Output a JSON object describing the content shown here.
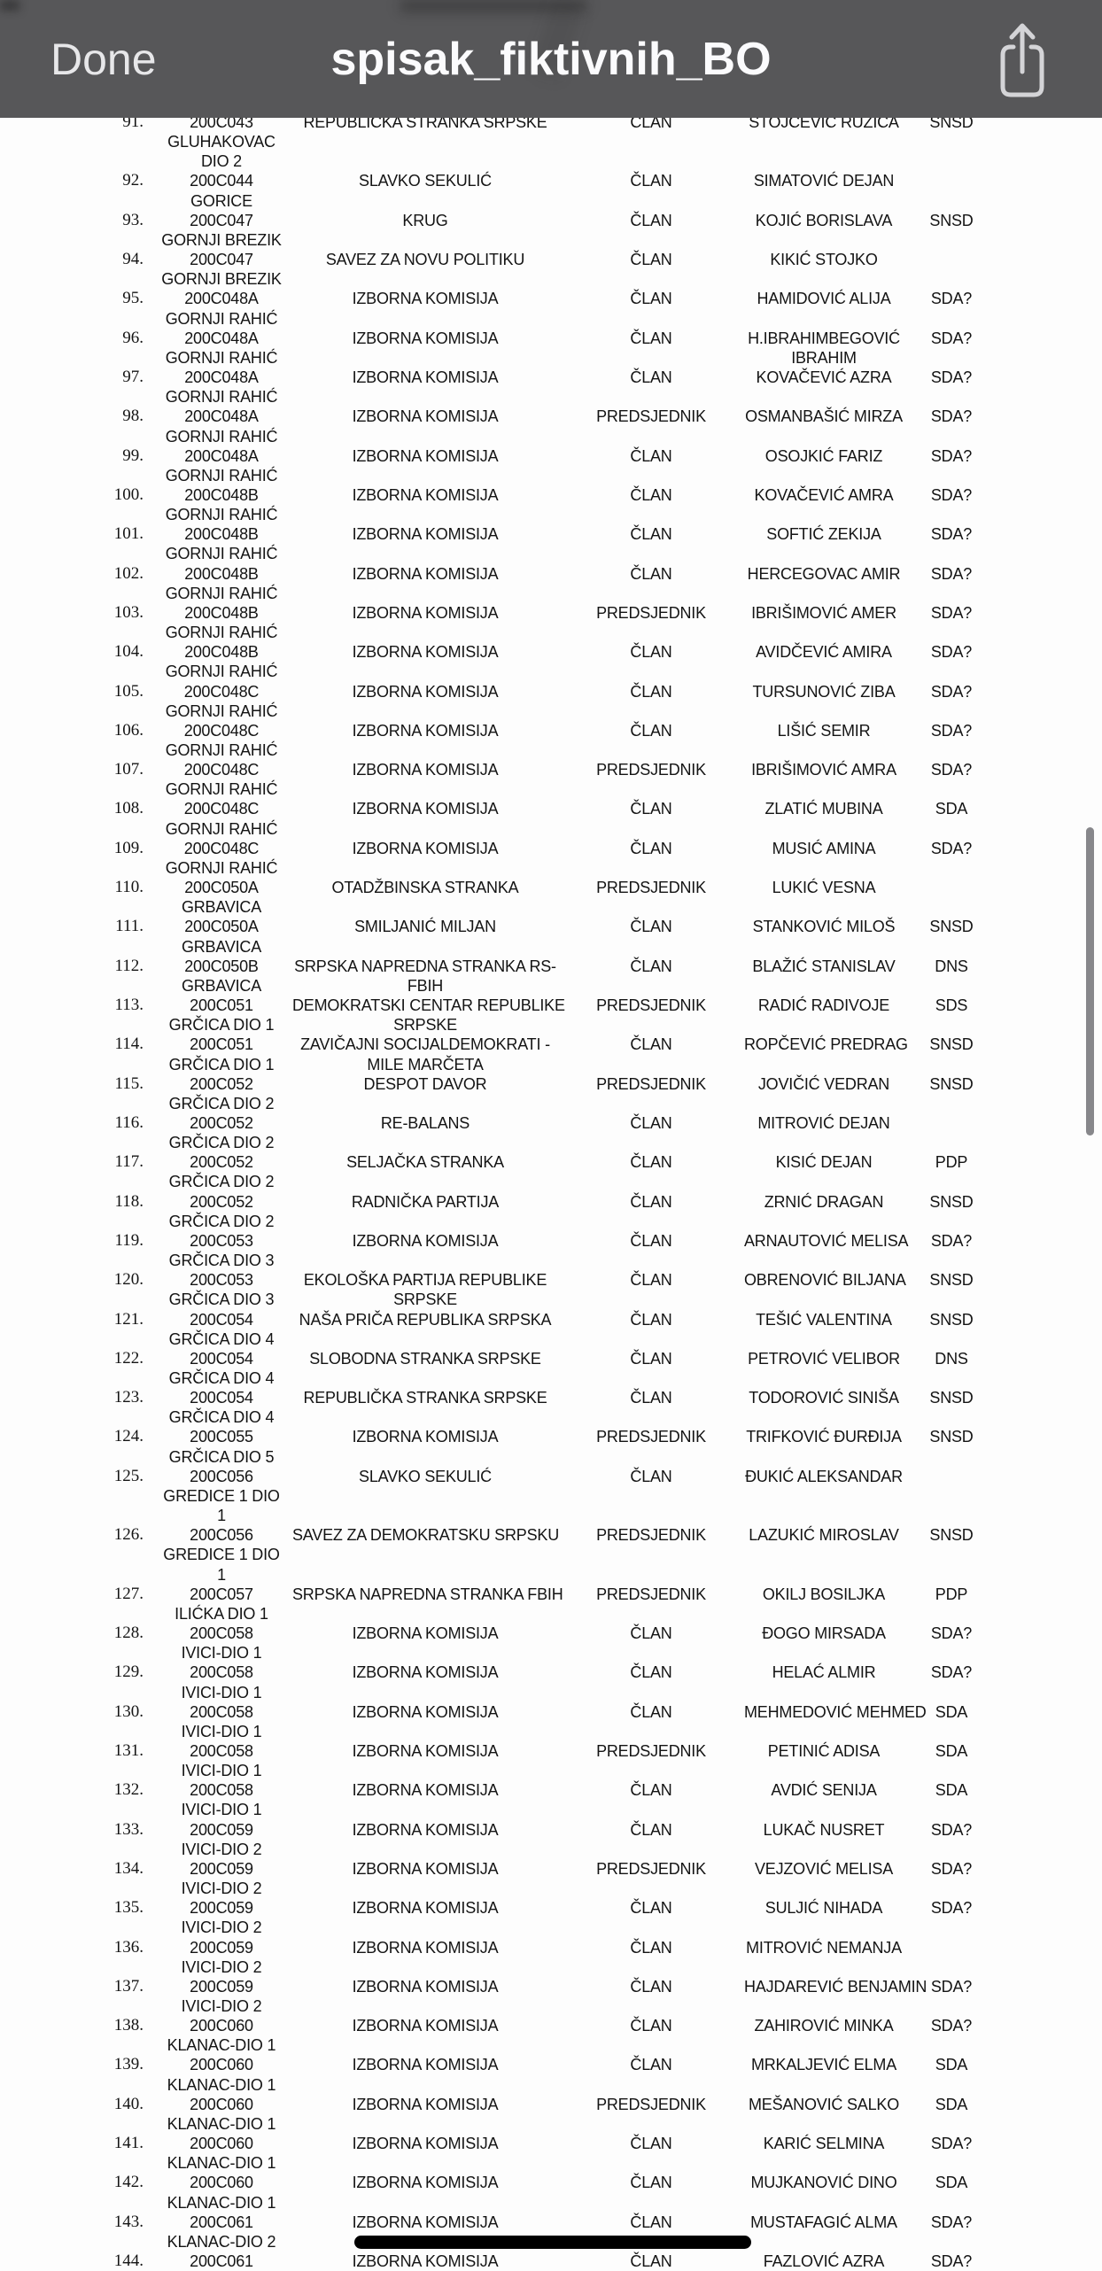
{
  "navbar": {
    "done_label": "Done",
    "title": "spisak_fiktivnih_BO"
  },
  "colors": {
    "navbar_bg": "#575759",
    "navbar_text": "#e7e7e9",
    "title_text": "#fbfbfd",
    "icon_color": "#d4d4d7",
    "page_bg": "#fdfdfd",
    "text_color": "#141414",
    "scrollbar_color": "#87878b",
    "redaction_color": "#000000"
  },
  "table": {
    "rows": [
      {
        "num": "91.",
        "code": "200C043",
        "place": "GLUHAKOVAC\nDIO 2",
        "party": "REPUBLIČKA STRANKA SRPSKE",
        "role": "ČLAN",
        "name": "STOJČEVIĆ RUŽICA",
        "abbr": "SNSD"
      },
      {
        "num": "92.",
        "code": "200C044",
        "place": "GORICE",
        "party": "SLAVKO SEKULIĆ",
        "role": "ČLAN",
        "name": "SIMATOVIĆ DEJAN",
        "abbr": ""
      },
      {
        "num": "93.",
        "code": "200C047",
        "place": "GORNJI BREZIK",
        "party": "KRUG",
        "role": "ČLAN",
        "name": "KOJIĆ BORISLAVA",
        "abbr": "SNSD"
      },
      {
        "num": "94.",
        "code": "200C047",
        "place": "GORNJI BREZIK",
        "party": "SAVEZ ZA NOVU POLITIKU",
        "role": "ČLAN",
        "name": "KIKIĆ STOJKO",
        "abbr": ""
      },
      {
        "num": "95.",
        "code": "200C048A",
        "place": "GORNJI RAHIĆ",
        "party": "IZBORNA KOMISIJA",
        "role": "ČLAN",
        "name": "HAMIDOVIĆ ALIJA",
        "abbr": "SDA?"
      },
      {
        "num": "96.",
        "code": "200C048A",
        "place": "GORNJI RAHIĆ",
        "party": "IZBORNA KOMISIJA",
        "role": "ČLAN",
        "name": "H.IBRAHIMBEGOVIĆ\nIBRAHIM",
        "abbr": "SDA?"
      },
      {
        "num": "97.",
        "code": "200C048A",
        "place": "GORNJI RAHIĆ",
        "party": "IZBORNA KOMISIJA",
        "role": "ČLAN",
        "name": "KOVAČEVIĆ AZRA",
        "abbr": "SDA?"
      },
      {
        "num": "98.",
        "code": "200C048A",
        "place": "GORNJI RAHIĆ",
        "party": "IZBORNA KOMISIJA",
        "role": "PREDSJEDNIK",
        "name": "OSMANBAŠIĆ MIRZA",
        "abbr": "SDA?"
      },
      {
        "num": "99.",
        "code": "200C048A",
        "place": "GORNJI RAHIĆ",
        "party": "IZBORNA KOMISIJA",
        "role": "ČLAN",
        "name": "OSOJKIĆ FARIZ",
        "abbr": "SDA?"
      },
      {
        "num": "100.",
        "code": "200C048B",
        "place": "GORNJI RAHIĆ",
        "party": "IZBORNA KOMISIJA",
        "role": "ČLAN",
        "name": "KOVAČEVIĆ AMRA",
        "abbr": "SDA?"
      },
      {
        "num": "101.",
        "code": "200C048B",
        "place": "GORNJI RAHIĆ",
        "party": "IZBORNA KOMISIJA",
        "role": "ČLAN",
        "name": "SOFTIĆ ZEKIJA",
        "abbr": "SDA?"
      },
      {
        "num": "102.",
        "code": "200C048B",
        "place": "GORNJI RAHIĆ",
        "party": "IZBORNA KOMISIJA",
        "role": "ČLAN",
        "name": "HERCEGOVAC AMIR",
        "abbr": "SDA?"
      },
      {
        "num": "103.",
        "code": "200C048B",
        "place": "GORNJI RAHIĆ",
        "party": "IZBORNA KOMISIJA",
        "role": "PREDSJEDNIK",
        "name": "IBRIŠIMOVIĆ AMER",
        "abbr": "SDA?"
      },
      {
        "num": "104.",
        "code": "200C048B",
        "place": "GORNJI RAHIĆ",
        "party": "IZBORNA KOMISIJA",
        "role": "ČLAN",
        "name": "AVIDČEVIĆ AMIRA",
        "abbr": "SDA?"
      },
      {
        "num": "105.",
        "code": "200C048C",
        "place": "GORNJI RAHIĆ",
        "party": "IZBORNA KOMISIJA",
        "role": "ČLAN",
        "name": "TURSUNOVIĆ ZIBA",
        "abbr": "SDA?"
      },
      {
        "num": "106.",
        "code": "200C048C",
        "place": "GORNJI RAHIĆ",
        "party": "IZBORNA KOMISIJA",
        "role": "ČLAN",
        "name": "LIŠIĆ SEMIR",
        "abbr": "SDA?"
      },
      {
        "num": "107.",
        "code": "200C048C",
        "place": "GORNJI RAHIĆ",
        "party": "IZBORNA KOMISIJA",
        "role": "PREDSJEDNIK",
        "name": "IBRIŠIMOVIĆ AMRA",
        "abbr": "SDA?"
      },
      {
        "num": "108.",
        "code": "200C048C",
        "place": "GORNJI RAHIĆ",
        "party": "IZBORNA KOMISIJA",
        "role": "ČLAN",
        "name": "ZLATIĆ MUBINA",
        "abbr": "SDA"
      },
      {
        "num": "109.",
        "code": "200C048C",
        "place": "GORNJI RAHIĆ",
        "party": "IZBORNA KOMISIJA",
        "role": "ČLAN",
        "name": "MUSIĆ AMINA",
        "abbr": "SDA?"
      },
      {
        "num": "110.",
        "code": "200C050A",
        "place": "GRBAVICA",
        "party": "OTADŽBINSKA STRANKA",
        "role": "PREDSJEDNIK",
        "name": "LUKIĆ VESNA",
        "abbr": ""
      },
      {
        "num": "111.",
        "code": "200C050A",
        "place": "GRBAVICA",
        "party": "SMILJANIĆ MILJAN",
        "role": "ČLAN",
        "name": "STANKOVIĆ MILOŠ",
        "abbr": "SNSD"
      },
      {
        "num": "112.",
        "code": "200C050B",
        "place": "GRBAVICA",
        "party": "SRPSKA NAPREDNA STRANKA RS-\nFBIH",
        "role": "ČLAN",
        "name": "BLAŽIĆ STANISLAV",
        "abbr": "DNS"
      },
      {
        "num": "113.",
        "code": "200C051",
        "place": "GRČICA DIO 1",
        "party": "DEMOKRATSKI CENTAR REPUBLIKE\nSRPSKE",
        "role": "PREDSJEDNIK",
        "name": "RADIĆ RADIVOJE",
        "abbr": "SDS"
      },
      {
        "num": "114.",
        "code": "200C051",
        "place": "GRČICA DIO 1",
        "party": "ZAVIČAJNI SOCIJALDEMOKRATI -\nMILE MARČETA",
        "role": "ČLAN",
        "name": "ROPČEVIĆ PREDRAG",
        "abbr": "SNSD"
      },
      {
        "num": "115.",
        "code": "200C052",
        "place": "GRČICA DIO 2",
        "party": "DESPOT DAVOR",
        "role": "PREDSJEDNIK",
        "name": "JOVIČIĆ VEDRAN",
        "abbr": "SNSD"
      },
      {
        "num": "116.",
        "code": "200C052",
        "place": "GRČICA DIO 2",
        "party": "RE-BALANS",
        "role": "ČLAN",
        "name": "MITROVIĆ DEJAN",
        "abbr": ""
      },
      {
        "num": "117.",
        "code": "200C052",
        "place": "GRČICA DIO 2",
        "party": "SELJAČKA STRANKA",
        "role": "ČLAN",
        "name": "KISIĆ DEJAN",
        "abbr": "PDP"
      },
      {
        "num": "118.",
        "code": "200C052",
        "place": "GRČICA DIO 2",
        "party": "RADNIČKA PARTIJA",
        "role": "ČLAN",
        "name": "ZRNIĆ DRAGAN",
        "abbr": "SNSD"
      },
      {
        "num": "119.",
        "code": "200C053",
        "place": "GRČICA DIO 3",
        "party": "IZBORNA KOMISIJA",
        "role": "ČLAN",
        "name": "ARNAUTOVIĆ MELISA",
        "abbr": "SDA?"
      },
      {
        "num": "120.",
        "code": "200C053",
        "place": "GRČICA DIO 3",
        "party": "EKOLOŠKA PARTIJA REPUBLIKE\nSRPSKE",
        "role": "ČLAN",
        "name": "OBRENOVIĆ BILJANA",
        "abbr": "SNSD"
      },
      {
        "num": "121.",
        "code": "200C054",
        "place": "GRČICA DIO 4",
        "party": "NAŠA PRIČA REPUBLIKA SRPSKA",
        "role": "ČLAN",
        "name": "TEŠIĆ VALENTINA",
        "abbr": "SNSD"
      },
      {
        "num": "122.",
        "code": "200C054",
        "place": "GRČICA DIO 4",
        "party": "SLOBODNA STRANKA SRPSKE",
        "role": "ČLAN",
        "name": "PETROVIĆ VELIBOR",
        "abbr": "DNS"
      },
      {
        "num": "123.",
        "code": "200C054",
        "place": "GRČICA DIO 4",
        "party": "REPUBLIČKA STRANKA SRPSKE",
        "role": "ČLAN",
        "name": "TODOROVIĆ SINIŠA",
        "abbr": "SNSD"
      },
      {
        "num": "124.",
        "code": "200C055",
        "place": "GRČICA DIO 5",
        "party": "IZBORNA KOMISIJA",
        "role": "PREDSJEDNIK",
        "name": "TRIFKOVIĆ ĐURĐIJA",
        "abbr": "SNSD"
      },
      {
        "num": "125.",
        "code": "200C056",
        "place": "GREDICE 1 DIO\n1",
        "party": "SLAVKO SEKULIĆ",
        "role": "ČLAN",
        "name": "ĐUKIĆ ALEKSANDAR",
        "abbr": ""
      },
      {
        "num": "126.",
        "code": "200C056",
        "place": "GREDICE 1 DIO\n1",
        "party": "SAVEZ ZA DEMOKRATSKU SRPSKU",
        "role": "PREDSJEDNIK",
        "name": "LAZUKIĆ MIROSLAV",
        "abbr": "SNSD"
      },
      {
        "num": "127.",
        "code": "200C057",
        "place": "ILIĆKA DIO 1",
        "party": "SRPSKA NAPREDNA STRANKA FBIH",
        "role": "PREDSJEDNIK",
        "name": "OKILJ BOSILJKA",
        "abbr": "PDP"
      },
      {
        "num": "128.",
        "code": "200C058",
        "place": "IVICI-DIO 1",
        "party": "IZBORNA KOMISIJA",
        "role": "ČLAN",
        "name": "ĐOGO MIRSADA",
        "abbr": "SDA?"
      },
      {
        "num": "129.",
        "code": "200C058",
        "place": "IVICI-DIO 1",
        "party": "IZBORNA KOMISIJA",
        "role": "ČLAN",
        "name": "HELAĆ ALMIR",
        "abbr": "SDA?"
      },
      {
        "num": "130.",
        "code": "200C058",
        "place": "IVICI-DIO 1",
        "party": "IZBORNA KOMISIJA",
        "role": "ČLAN",
        "name": "MEHMEDOVIĆ MEHMED",
        "abbr": "SDA"
      },
      {
        "num": "131.",
        "code": "200C058",
        "place": "IVICI-DIO 1",
        "party": "IZBORNA KOMISIJA",
        "role": "PREDSJEDNIK",
        "name": "PETINIĆ ADISA",
        "abbr": "SDA"
      },
      {
        "num": "132.",
        "code": "200C058",
        "place": "IVICI-DIO 1",
        "party": "IZBORNA KOMISIJA",
        "role": "ČLAN",
        "name": "AVDIĆ SENIJA",
        "abbr": "SDA"
      },
      {
        "num": "133.",
        "code": "200C059",
        "place": "IVICI-DIO 2",
        "party": "IZBORNA KOMISIJA",
        "role": "ČLAN",
        "name": "LUKAČ NUSRET",
        "abbr": "SDA?"
      },
      {
        "num": "134.",
        "code": "200C059",
        "place": "IVICI-DIO 2",
        "party": "IZBORNA KOMISIJA",
        "role": "PREDSJEDNIK",
        "name": "VEJZOVIĆ MELISA",
        "abbr": "SDA?"
      },
      {
        "num": "135.",
        "code": "200C059",
        "place": "IVICI-DIO 2",
        "party": "IZBORNA KOMISIJA",
        "role": "ČLAN",
        "name": "SULJIĆ NIHADA",
        "abbr": "SDA?"
      },
      {
        "num": "136.",
        "code": "200C059",
        "place": "IVICI-DIO 2",
        "party": "IZBORNA KOMISIJA",
        "role": "ČLAN",
        "name": "MITROVIĆ NEMANJA",
        "abbr": ""
      },
      {
        "num": "137.",
        "code": "200C059",
        "place": "IVICI-DIO 2",
        "party": "IZBORNA KOMISIJA",
        "role": "ČLAN",
        "name": "HAJDAREVIĆ BENJAMIN",
        "abbr": "SDA?"
      },
      {
        "num": "138.",
        "code": "200C060",
        "place": "KLANAC-DIO 1",
        "party": "IZBORNA KOMISIJA",
        "role": "ČLAN",
        "name": "ZAHIROVIĆ MINKA",
        "abbr": "SDA?"
      },
      {
        "num": "139.",
        "code": "200C060",
        "place": "KLANAC-DIO 1",
        "party": "IZBORNA KOMISIJA",
        "role": "ČLAN",
        "name": "MRKALJEVIĆ ELMA",
        "abbr": "SDA"
      },
      {
        "num": "140.",
        "code": "200C060",
        "place": "KLANAC-DIO 1",
        "party": "IZBORNA KOMISIJA",
        "role": "PREDSJEDNIK",
        "name": "MEŠANOVIĆ SALKO",
        "abbr": "SDA"
      },
      {
        "num": "141.",
        "code": "200C060",
        "place": "KLANAC-DIO 1",
        "party": "IZBORNA KOMISIJA",
        "role": "ČLAN",
        "name": "KARIĆ SELMINA",
        "abbr": "SDA?"
      },
      {
        "num": "142.",
        "code": "200C060",
        "place": "KLANAC-DIO 1",
        "party": "IZBORNA KOMISIJA",
        "role": "ČLAN",
        "name": "MUJKANOVIĆ DINO",
        "abbr": "SDA"
      },
      {
        "num": "143.",
        "code": "200C061",
        "place": "KLANAC-DIO 2",
        "party": "IZBORNA KOMISIJA",
        "role": "ČLAN",
        "name": "MUSTAFAGIĆ ALMA",
        "abbr": "SDA?",
        "redaction_bar": true
      },
      {
        "num": "144.",
        "code": "200C061",
        "place": "",
        "party": "IZBORNA KOMISIJA",
        "role": "ČLAN",
        "name": "FAZLOVIĆ AZRA",
        "abbr": "SDA?"
      }
    ]
  }
}
